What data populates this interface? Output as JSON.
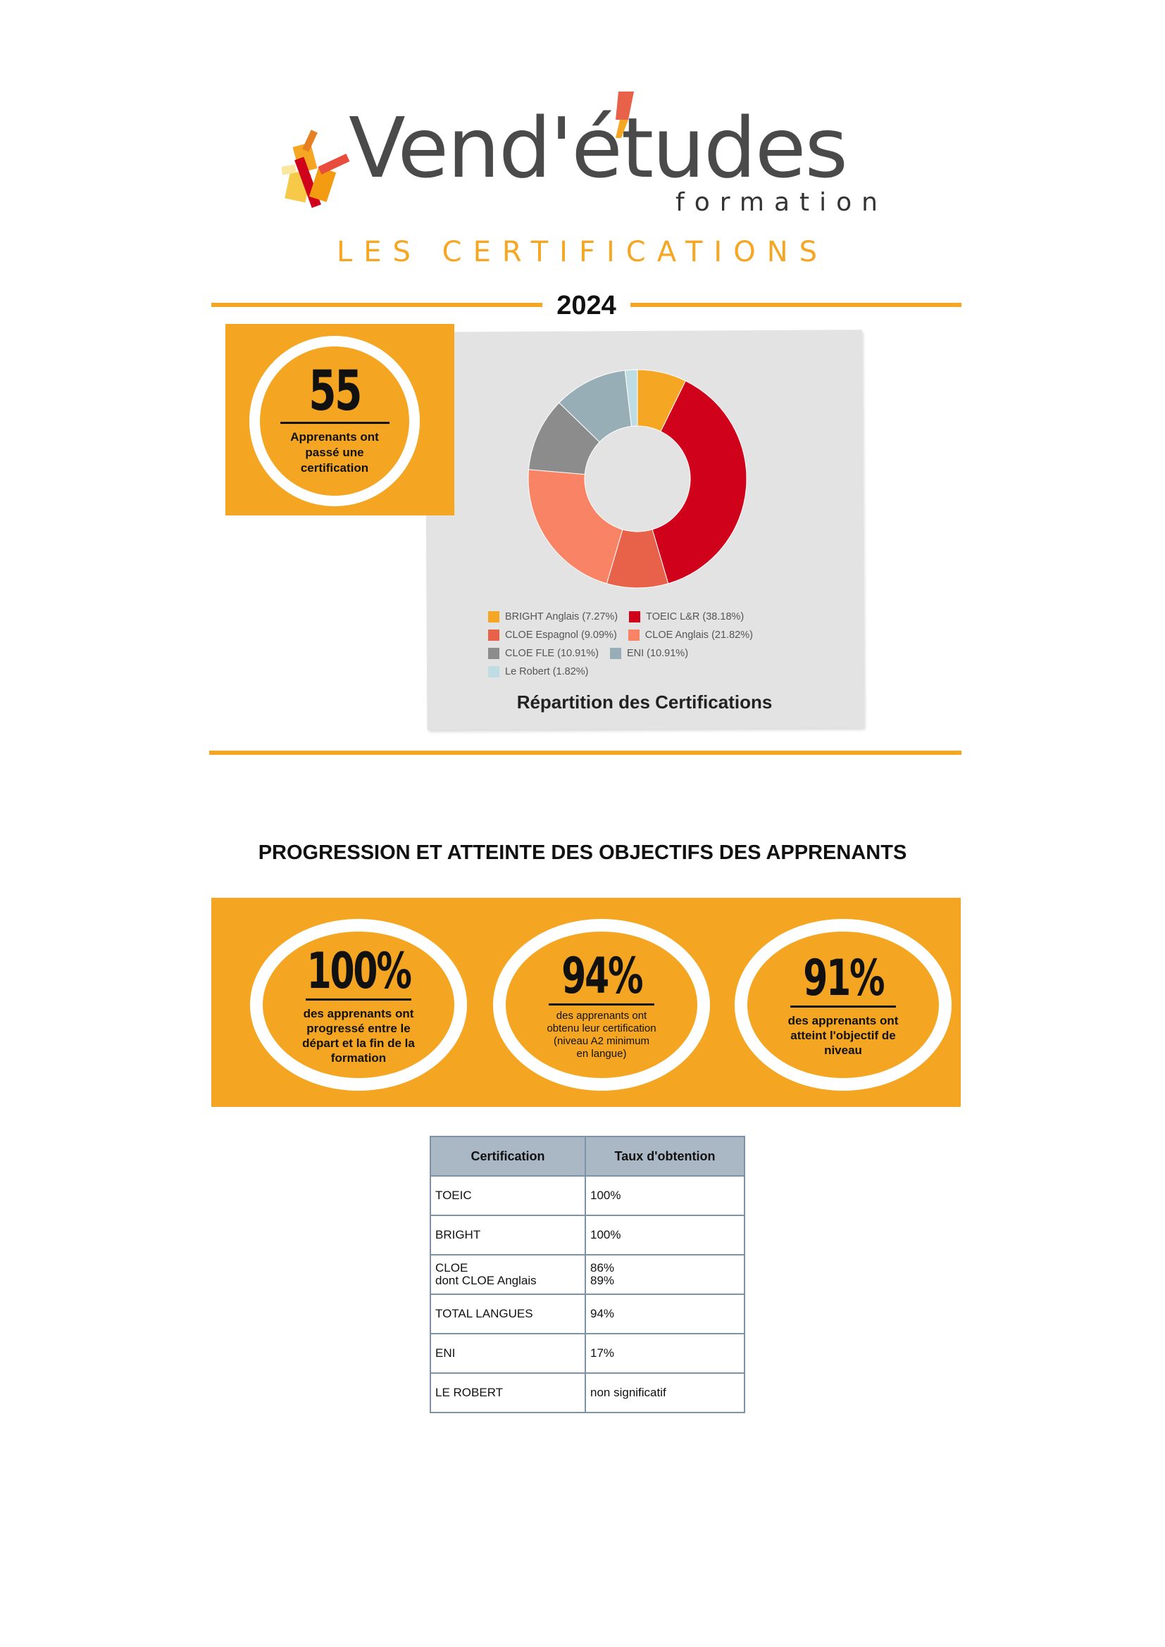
{
  "header": {
    "logo_text": "Vend'études",
    "logo_sub": "formation",
    "section_title": "LES CERTIFICATIONS",
    "year": "2024"
  },
  "learners": {
    "count": "55",
    "caption": "Apprenants ont passé une certification"
  },
  "chart_data": {
    "type": "pie",
    "variant": "donut",
    "title": "Répartition des Certifications",
    "legend_position": "bottom",
    "slices": [
      {
        "label": "BRIGHT Anglais (7.27%)",
        "value": 7.27,
        "color": "#F5A623"
      },
      {
        "label": "TOEIC L&R (38.18%)",
        "value": 38.18,
        "color": "#D0021B"
      },
      {
        "label": "CLOE Espagnol (9.09%)",
        "value": 9.09,
        "color": "#E8624A"
      },
      {
        "label": "CLOE Anglais (21.82%)",
        "value": 21.82,
        "color": "#F98465"
      },
      {
        "label": "CLOE FLE (10.91%)",
        "value": 10.91,
        "color": "#8C8C8C"
      },
      {
        "label": "ENI (10.91%)",
        "value": 10.91,
        "color": "#97AEB6"
      },
      {
        "label": "Le Robert (1.82%)",
        "value": 1.82,
        "color": "#BEDCE4"
      }
    ]
  },
  "progress": {
    "title": "PROGRESSION ET ATTEINTE DES OBJECTIFS DES APPRENANTS",
    "stats": [
      {
        "value": "100%",
        "caption": "des apprenants ont progressé entre le départ et la fin de la formation"
      },
      {
        "value": "94%",
        "caption_line1": "des apprenants ont obtenu leur certification",
        "caption_line2": "(niveau A2 minimum en langue)"
      },
      {
        "value": "91%",
        "caption": "des apprenants ont atteint l'objectif de niveau"
      }
    ]
  },
  "table": {
    "headers": [
      "Certification",
      "Taux d'obtention"
    ],
    "rows": [
      {
        "cert": "TOEIC",
        "rate": "100%"
      },
      {
        "cert": "BRIGHT",
        "rate": "100%"
      },
      {
        "cert": "CLOE",
        "cert_sub": "dont CLOE Anglais",
        "rate": "86%",
        "rate_sub": "89%"
      },
      {
        "cert": "TOTAL LANGUES",
        "rate": "94%"
      },
      {
        "cert": "ENI",
        "rate": "17%"
      },
      {
        "cert": "LE ROBERT",
        "rate": "non significatif"
      }
    ]
  },
  "colors": {
    "accent": "#F5A623",
    "text": "#111111",
    "table_header": "#AAB8C6"
  }
}
